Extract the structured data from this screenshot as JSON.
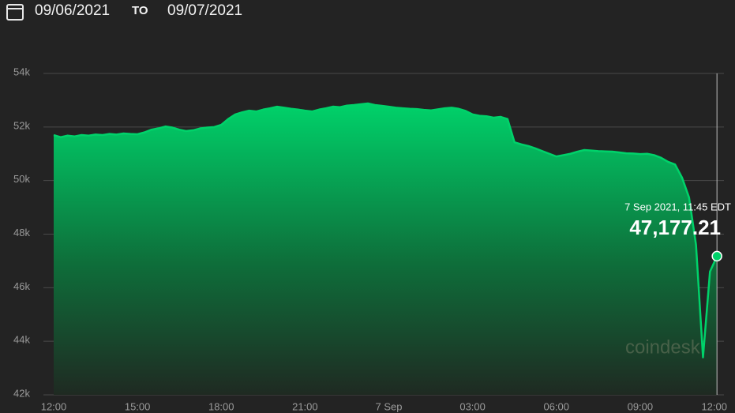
{
  "header": {
    "from": "09/06/2021",
    "separator": "TO",
    "to": "09/07/2021"
  },
  "watermark": "coindesk",
  "chart_data": {
    "type": "area",
    "categories": [
      "12:00",
      null,
      null,
      null,
      null,
      null,
      null,
      null,
      null,
      null,
      null,
      null,
      "15:00",
      null,
      null,
      null,
      null,
      null,
      null,
      null,
      null,
      null,
      null,
      null,
      "18:00",
      null,
      null,
      null,
      null,
      null,
      null,
      null,
      null,
      null,
      null,
      null,
      "21:00",
      null,
      null,
      null,
      null,
      null,
      null,
      null,
      null,
      null,
      null,
      null,
      "7 Sep",
      null,
      null,
      null,
      null,
      null,
      null,
      null,
      null,
      null,
      null,
      null,
      "03:00",
      null,
      null,
      null,
      null,
      null,
      null,
      null,
      null,
      null,
      null,
      null,
      "06:00",
      null,
      null,
      null,
      null,
      null,
      null,
      null,
      null,
      null,
      null,
      null,
      "09:00",
      null,
      null,
      null,
      null,
      null,
      null,
      null,
      null,
      null,
      null,
      null,
      "12:00"
    ],
    "values": [
      51700,
      51620,
      51680,
      51650,
      51700,
      51680,
      51720,
      51700,
      51740,
      51720,
      51760,
      51740,
      51730,
      51800,
      51900,
      51950,
      52020,
      51980,
      51900,
      51850,
      51880,
      51950,
      51980,
      52000,
      52080,
      52300,
      52470,
      52550,
      52610,
      52580,
      52650,
      52700,
      52760,
      52720,
      52680,
      52650,
      52610,
      52580,
      52650,
      52700,
      52760,
      52740,
      52800,
      52820,
      52850,
      52880,
      52820,
      52790,
      52760,
      52720,
      52700,
      52680,
      52670,
      52640,
      52620,
      52660,
      52700,
      52720,
      52680,
      52600,
      52470,
      52420,
      52400,
      52350,
      52380,
      52300,
      51430,
      51350,
      51290,
      51200,
      51100,
      51000,
      50900,
      50950,
      51000,
      51080,
      51140,
      51120,
      51100,
      51090,
      51080,
      51050,
      51020,
      51010,
      50990,
      51000,
      50950,
      50850,
      50700,
      50600,
      50110,
      49370,
      47600,
      43400,
      46600,
      47177.21,
      null
    ],
    "value_labels": [
      null,
      null,
      null,
      null,
      null,
      null,
      null,
      null,
      null,
      null,
      null,
      null,
      null,
      null,
      null,
      null,
      null,
      null,
      null,
      null,
      null,
      null,
      null,
      null,
      null,
      null,
      null,
      null,
      null,
      null,
      null,
      null,
      null,
      null,
      null,
      null,
      null,
      null,
      null,
      null,
      null,
      null,
      null,
      null,
      null,
      null,
      null,
      null,
      null,
      null,
      null,
      null,
      null,
      null,
      null,
      null,
      null,
      null,
      null,
      null,
      null,
      null,
      null,
      null,
      null,
      null,
      null,
      null,
      null,
      null,
      null,
      null,
      null,
      null,
      null,
      null,
      null,
      null,
      null,
      null,
      null,
      null,
      null,
      null,
      null,
      null,
      null,
      null,
      null,
      null,
      null,
      null,
      null,
      null,
      null,
      "47,177.21",
      null
    ],
    "annotation": "7 Sep 2021, 11:45 EDT",
    "color": "#00d26a",
    "ylim": [
      42000,
      54000
    ],
    "yticks": [
      {
        "value": 42000,
        "label": "42k"
      },
      {
        "value": 44000,
        "label": "44k"
      },
      {
        "value": 46000,
        "label": "46k"
      },
      {
        "value": 48000,
        "label": "48k"
      },
      {
        "value": 50000,
        "label": "50k"
      },
      {
        "value": 52000,
        "label": "52k"
      },
      {
        "value": 54000,
        "label": "54k"
      }
    ],
    "grid": true
  }
}
